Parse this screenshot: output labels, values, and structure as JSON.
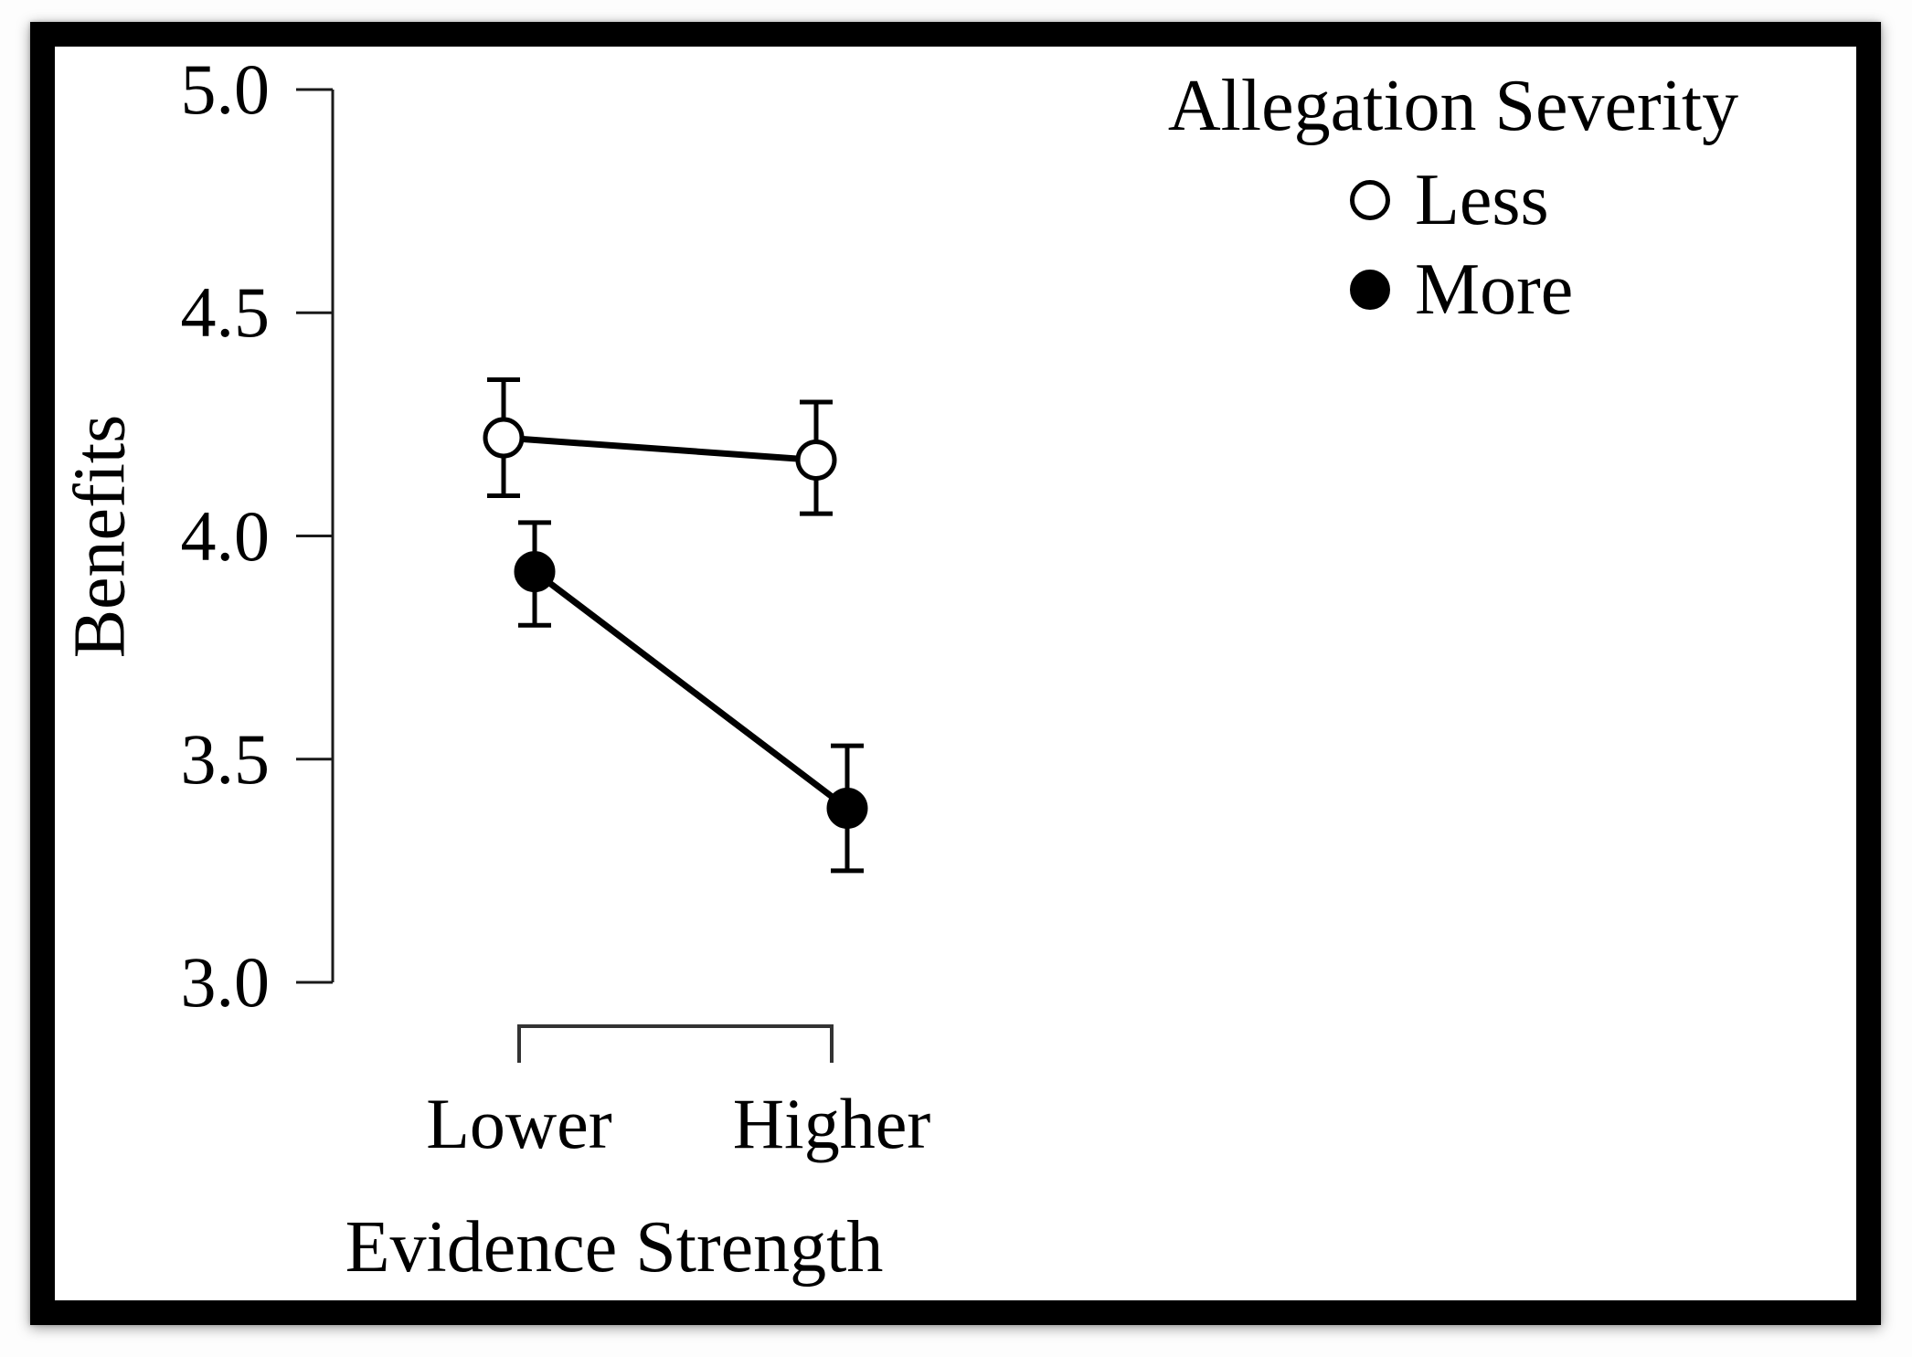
{
  "chart_data": {
    "type": "line",
    "title": "",
    "ylabel": "Benefits",
    "xlabel": "Evidence Strength",
    "ylim": [
      3.0,
      5.0
    ],
    "yticks": [
      {
        "label": "5.0",
        "value": 5.0
      },
      {
        "label": "4.5",
        "value": 4.5
      },
      {
        "label": "4.0",
        "value": 4.0
      },
      {
        "label": "3.5",
        "value": 3.5
      },
      {
        "label": "3.0",
        "value": 3.0
      }
    ],
    "categories": [
      "Lower",
      "Higher"
    ],
    "grid": "off",
    "legend": {
      "title": "Allegation Severity",
      "position": "top-right",
      "items": [
        {
          "label": "Less",
          "marker": "open-circle"
        },
        {
          "label": "More",
          "marker": "filled-circle"
        }
      ]
    },
    "series": [
      {
        "name": "Less",
        "marker": "open-circle",
        "color": "#000000",
        "fill": "#ffffff",
        "values": [
          4.22,
          4.17
        ],
        "err_low": [
          4.09,
          4.05
        ],
        "err_high": [
          4.35,
          4.3
        ]
      },
      {
        "name": "More",
        "marker": "filled-circle",
        "color": "#000000",
        "fill": "#000000",
        "values": [
          3.92,
          3.39
        ],
        "err_low": [
          3.8,
          3.25
        ],
        "err_high": [
          4.03,
          3.53
        ]
      }
    ]
  }
}
